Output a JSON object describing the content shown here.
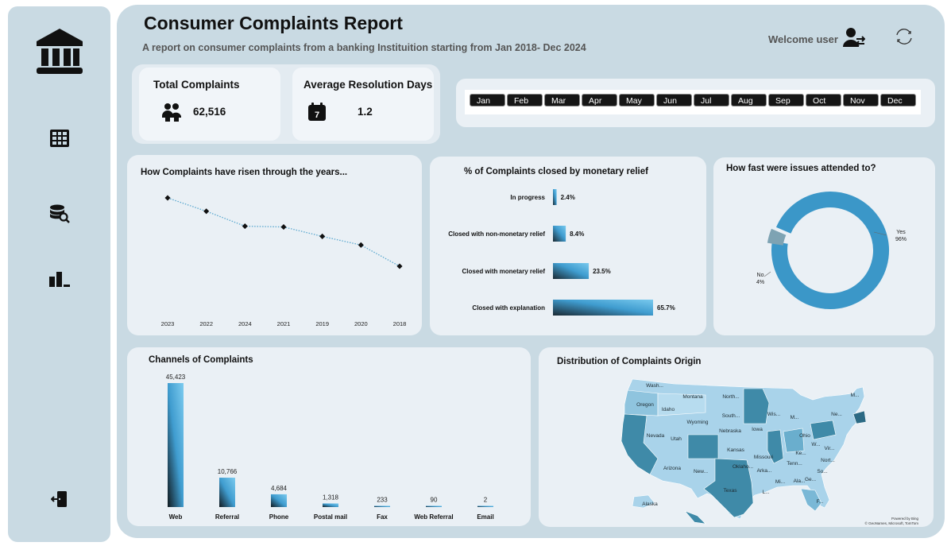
{
  "header": {
    "title": "Consumer Complaints Report",
    "subtitle": "A report on consumer complaints from a banking Instituition  starting from Jan 2018- Dec 2024",
    "welcome": "Welcome user"
  },
  "sidebar": {
    "items": [
      {
        "icon": "bank-icon"
      },
      {
        "icon": "table-icon"
      },
      {
        "icon": "database-search-icon"
      },
      {
        "icon": "bar-chart-icon"
      },
      {
        "icon": "logout-icon"
      }
    ]
  },
  "kpis": {
    "total_label": "Total Complaints",
    "total_value": "62,516",
    "resolution_label": "Average Resolution Days",
    "resolution_value": "1.2",
    "calendar_number": "7"
  },
  "timeline": {
    "months": [
      "Jan",
      "Feb",
      "Mar",
      "Apr",
      "May",
      "Jun",
      "Jul",
      "Aug",
      "Sep",
      "Oct",
      "Nov",
      "Dec"
    ]
  },
  "colors": {
    "accent_blue": "#3b97c8",
    "dark_teal": "#2c6a84",
    "panel_bg": "#c9dae3",
    "card_bg": "#eaf0f5"
  },
  "chart_data": [
    {
      "type": "line",
      "title": "How Complaints have risen through the years...",
      "categories": [
        "2023",
        "2022",
        "2024",
        "2021",
        "2019",
        "2020",
        "2018"
      ],
      "values": [
        10,
        8.3,
        6.4,
        6.3,
        5.1,
        4.0,
        1.3
      ]
    },
    {
      "type": "bar",
      "orientation": "horizontal",
      "title": "% of Complaints closed by monetary relief",
      "categories": [
        "In progress",
        "Closed with non-monetary relief",
        "Closed with monetary relief",
        "Closed with explanation"
      ],
      "values": [
        2.4,
        8.4,
        23.5,
        65.7
      ],
      "labels": [
        "2.4%",
        "8.4%",
        "23.5%",
        "65.7%"
      ]
    },
    {
      "type": "pie",
      "title": "How fast were issues attended to?",
      "categories": [
        "Yes",
        "No"
      ],
      "values": [
        96,
        4
      ],
      "labels": [
        "96%",
        "4%"
      ],
      "colors": [
        "#3b97c8",
        "#7ea3b3"
      ]
    },
    {
      "type": "bar",
      "title": "Channels of Complaints",
      "categories": [
        "Web",
        "Referral",
        "Phone",
        "Postal mail",
        "Fax",
        "Web Referral",
        "Email"
      ],
      "values": [
        45423,
        10766,
        4684,
        1318,
        233,
        90,
        2
      ],
      "labels": [
        "45,423",
        "10,766",
        "4,684",
        "1,318",
        "233",
        "90",
        "2"
      ]
    }
  ],
  "map": {
    "title": "Distribution of Complaints Origin",
    "labels": [
      {
        "name": "Wash..."
      },
      {
        "name": "Montana"
      },
      {
        "name": "North..."
      },
      {
        "name": "Oregon"
      },
      {
        "name": "Idaho"
      },
      {
        "name": "South..."
      },
      {
        "name": "Wis..."
      },
      {
        "name": "M..."
      },
      {
        "name": "Ne..."
      },
      {
        "name": "M..."
      },
      {
        "name": "Wyoming"
      },
      {
        "name": "Nebraska"
      },
      {
        "name": "Iowa"
      },
      {
        "name": "Nevada"
      },
      {
        "name": "Utah"
      },
      {
        "name": "Ohio"
      },
      {
        "name": "W..."
      },
      {
        "name": "Vir..."
      },
      {
        "name": "Ke..."
      },
      {
        "name": "Kansas"
      },
      {
        "name": "Missouri"
      },
      {
        "name": "Nort..."
      },
      {
        "name": "Tenn..."
      },
      {
        "name": "Oklaho..."
      },
      {
        "name": "Arizona"
      },
      {
        "name": "New..."
      },
      {
        "name": "Arka..."
      },
      {
        "name": "So..."
      },
      {
        "name": "Mi..."
      },
      {
        "name": "Ala..."
      },
      {
        "name": "Ge..."
      },
      {
        "name": "Texas"
      },
      {
        "name": "L..."
      },
      {
        "name": "F..."
      },
      {
        "name": "Alaska"
      }
    ],
    "powered_by": "Powered by Bing",
    "copyright": "© GeoNames, Microsoft, TomTom"
  }
}
